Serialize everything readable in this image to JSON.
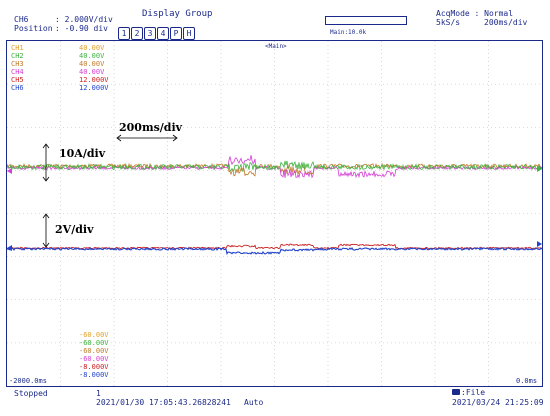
{
  "header": {
    "ch_label": "CH6",
    "vdiv_value": ": 2.000V/div",
    "position_label": "Position",
    "position_value": ": -0.90 div",
    "display_group_title": "Display Group",
    "display_group_buttons": [
      "1",
      "2",
      "3",
      "4",
      "P",
      "H"
    ],
    "zoom_label": "Main:10.0k",
    "acq_mode": "AcqMode : Normal",
    "sample_rate": "5kS/s",
    "time_div": "200ms/div"
  },
  "plot": {
    "main_label": "<Main>",
    "left_time": "-2000.0ms",
    "right_time": "0.0ms",
    "channel_scales_top": [
      {
        "name": "CH1",
        "value": "40.00V",
        "color": "#e3a02a"
      },
      {
        "name": "CH2",
        "value": "40.00V",
        "color": "#3fb23f"
      },
      {
        "name": "CH3",
        "value": "40.00V",
        "color": "#c07a2a"
      },
      {
        "name": "CH4",
        "value": "40.00V",
        "color": "#d43fd4"
      },
      {
        "name": "CH5",
        "value": "12.000V",
        "color": "#cc2222"
      },
      {
        "name": "CH6",
        "value": "12.000V",
        "color": "#2244cc"
      }
    ],
    "channel_scales_bottom": [
      {
        "value": "-60.00V",
        "color": "#e3a02a"
      },
      {
        "value": "-60.00V",
        "color": "#3fb23f"
      },
      {
        "value": "-60.00V",
        "color": "#c07a2a"
      },
      {
        "value": "-60.00V",
        "color": "#d43fd4"
      },
      {
        "value": "-8.000V",
        "color": "#cc2222"
      },
      {
        "value": "-8.000V",
        "color": "#2244cc"
      }
    ],
    "annotations": {
      "time_div": "200ms/div",
      "current_div": "10A/div",
      "voltage_div": "2V/div"
    }
  },
  "footer": {
    "status": "Stopped",
    "acq_count": "1",
    "trigger_time": "2021/01/30 17:05:43.26828241",
    "trigger_mode": "Auto",
    "file_label": ":File",
    "current_time": "2021/03/24 21:25:09"
  },
  "colors": {
    "frame": "#1b2a8a",
    "grid": "#b9b9c9",
    "green": "#3fb23f",
    "magenta": "#d43fd4",
    "orange": "#c07a2a",
    "red": "#cc2222",
    "blue": "#2244cc"
  }
}
